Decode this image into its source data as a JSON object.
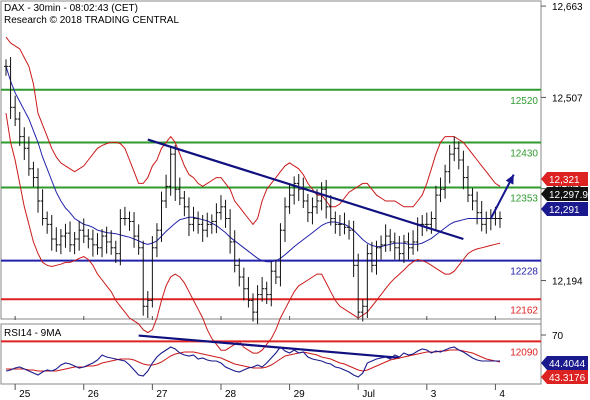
{
  "header": {
    "instrument_line": "DAX - 30min - 08:02:43 (CET)",
    "copyright_line": "Research © 2018 TRADING CENTRAL"
  },
  "colors": {
    "price": "#111111",
    "bollinger": "#cc1a1a",
    "moving_average": "#2222aa",
    "trendline": "#101080",
    "resistance": "#2f9a2f",
    "pivot": "#2222aa",
    "support": "#dd2222",
    "projection_arrow": "#16168e",
    "rsi": "#1a1a8e",
    "rsi_ma": "#cc1a1a",
    "badge_red": "#dd2222",
    "badge_blue": "#1a1a8e",
    "badge_black": "#111111"
  },
  "chart_data": [
    {
      "type": "line",
      "title": "DAX - 30min",
      "panel": "price",
      "ylim": [
        12130,
        12670
      ],
      "y_ticks": [
        12663,
        12507,
        12351,
        12194
      ],
      "x_ticks": [
        {
          "label": "25",
          "x": 2
        },
        {
          "label": "26",
          "x": 17
        },
        {
          "label": "27",
          "x": 32
        },
        {
          "label": "28",
          "x": 47
        },
        {
          "label": "29",
          "x": 62
        },
        {
          "label": "Jul",
          "x": 77
        },
        {
          "label": "3",
          "x": 92
        },
        {
          "label": "4",
          "x": 107
        }
      ],
      "x_range": [
        0,
        115
      ],
      "levels": [
        {
          "label": "12520",
          "value": 12520,
          "kind": "resistance"
        },
        {
          "label": "12430",
          "value": 12430,
          "kind": "resistance"
        },
        {
          "label": "12353",
          "value": 12353,
          "kind": "resistance"
        },
        {
          "label": "12228",
          "value": 12228,
          "kind": "pivot"
        },
        {
          "label": "12162",
          "value": 12162,
          "kind": "support"
        },
        {
          "label": "12090",
          "value": 12090,
          "kind": "support"
        }
      ],
      "trendlines": [
        {
          "name": "upper trendline",
          "from": [
            31,
            12435
          ],
          "to": [
            100,
            12265
          ]
        },
        {
          "name": "lower trendline",
          "from": [
            29,
            12100
          ],
          "to": [
            86,
            12062
          ]
        }
      ],
      "projection_arrow": {
        "from": [
          106,
          12300
        ],
        "to": [
          111,
          12375
        ]
      },
      "price_badges": [
        {
          "label": "12,321",
          "value": 12321,
          "color": "red"
        },
        {
          "label": "12,297.9",
          "value": 12297.9,
          "color": "black"
        },
        {
          "label": "12,291",
          "value": 12291,
          "color": "blue"
        }
      ],
      "close": [
        12560,
        12490,
        12470,
        12440,
        12420,
        12385,
        12370,
        12330,
        12300,
        12290,
        12265,
        12255,
        12270,
        12275,
        12255,
        12265,
        12280,
        12270,
        12265,
        12255,
        12250,
        12270,
        12260,
        12250,
        12240,
        12300,
        12300,
        12295,
        12270,
        12250,
        12150,
        12160,
        12250,
        12280,
        12330,
        12355,
        12410,
        12350,
        12335,
        12320,
        12290,
        12300,
        12290,
        12280,
        12290,
        12295,
        12310,
        12320,
        12300,
        12260,
        12220,
        12200,
        12180,
        12160,
        12140,
        12170,
        12180,
        12170,
        12210,
        12200,
        12280,
        12320,
        12340,
        12360,
        12350,
        12330,
        12310,
        12320,
        12330,
        12350,
        12320,
        12300,
        12290,
        12290,
        12285,
        12280,
        12220,
        12140,
        12150,
        12240,
        12220,
        12250,
        12255,
        12270,
        12260,
        12250,
        12240,
        12260,
        12250,
        12260,
        12290,
        12290,
        12290,
        12300,
        12340,
        12350,
        12380,
        12410,
        12420,
        12400,
        12370,
        12340,
        12330,
        12310,
        12290,
        12300,
        12300,
        12300,
        12300
      ],
      "bb_upper": [
        12610,
        12600,
        12595,
        12590,
        12575,
        12560,
        12530,
        12480,
        12460,
        12440,
        12420,
        12405,
        12395,
        12390,
        12385,
        12380,
        12385,
        12390,
        12400,
        12410,
        12420,
        12425,
        12428,
        12430,
        12430,
        12428,
        12420,
        12400,
        12380,
        12360,
        12360,
        12370,
        12390,
        12400,
        12420,
        12430,
        12440,
        12430,
        12410,
        12390,
        12375,
        12370,
        12360,
        12355,
        12360,
        12365,
        12370,
        12370,
        12360,
        12350,
        12330,
        12320,
        12310,
        12300,
        12290,
        12300,
        12330,
        12350,
        12360,
        12370,
        12380,
        12390,
        12395,
        12390,
        12385,
        12375,
        12360,
        12350,
        12340,
        12340,
        12330,
        12320,
        12320,
        12325,
        12335,
        12345,
        12350,
        12355,
        12360,
        12360,
        12350,
        12340,
        12335,
        12330,
        12330,
        12330,
        12325,
        12320,
        12320,
        12320,
        12330,
        12340,
        12360,
        12385,
        12410,
        12430,
        12440,
        12440,
        12440,
        12435,
        12430,
        12420,
        12410,
        12400,
        12390,
        12380,
        12370,
        12360,
        12355
      ],
      "bb_lower": [
        12480,
        12430,
        12400,
        12360,
        12320,
        12290,
        12260,
        12240,
        12225,
        12220,
        12218,
        12220,
        12222,
        12225,
        12225,
        12228,
        12232,
        12235,
        12230,
        12220,
        12205,
        12195,
        12185,
        12175,
        12160,
        12150,
        12140,
        12130,
        12125,
        12120,
        12110,
        12105,
        12110,
        12130,
        12160,
        12185,
        12200,
        12205,
        12200,
        12190,
        12175,
        12160,
        12145,
        12130,
        12110,
        12095,
        12085,
        12075,
        12075,
        12080,
        12085,
        12090,
        12080,
        12075,
        12070,
        12070,
        12075,
        12085,
        12095,
        12110,
        12130,
        12145,
        12160,
        12175,
        12185,
        12190,
        12195,
        12200,
        12205,
        12205,
        12190,
        12175,
        12160,
        12150,
        12145,
        12140,
        12135,
        12130,
        12135,
        12140,
        12150,
        12160,
        12170,
        12180,
        12190,
        12198,
        12205,
        12212,
        12220,
        12226,
        12230,
        12228,
        12225,
        12220,
        12215,
        12210,
        12205,
        12205,
        12210,
        12220,
        12230,
        12240,
        12245,
        12248,
        12250,
        12252,
        12254,
        12256,
        12258
      ],
      "ma": [
        12560,
        12535,
        12515,
        12500,
        12485,
        12470,
        12450,
        12430,
        12405,
        12385,
        12365,
        12345,
        12330,
        12318,
        12310,
        12300,
        12295,
        12290,
        12288,
        12285,
        12280,
        12278,
        12276,
        12275,
        12274,
        12272,
        12270,
        12268,
        12265,
        12262,
        12258,
        12256,
        12258,
        12262,
        12270,
        12278,
        12285,
        12292,
        12298,
        12300,
        12302,
        12302,
        12300,
        12298,
        12296,
        12292,
        12288,
        12282,
        12276,
        12268,
        12262,
        12256,
        12250,
        12244,
        12238,
        12232,
        12228,
        12226,
        12226,
        12228,
        12232,
        12238,
        12245,
        12252,
        12258,
        12264,
        12270,
        12276,
        12282,
        12288,
        12292,
        12294,
        12294,
        12292,
        12290,
        12286,
        12280,
        12272,
        12264,
        12258,
        12254,
        12252,
        12252,
        12254,
        12256,
        12258,
        12258,
        12258,
        12256,
        12256,
        12256,
        12258,
        12262,
        12266,
        12272,
        12278,
        12284,
        12290,
        12294,
        12296,
        12298,
        12300,
        12300,
        12300,
        12300,
        12300,
        12300,
        12300,
        12300
      ]
    },
    {
      "type": "line",
      "title": "RSI14 - 9MA",
      "panel": "rsi",
      "ylim": [
        22,
        80
      ],
      "y_ticks": [
        70
      ],
      "rsi_badges": [
        {
          "label": "44.4044",
          "value": 44.4044,
          "color": "blue"
        },
        {
          "label": "43.3176",
          "value": 43.3176,
          "color": "red"
        }
      ],
      "series": [
        {
          "name": "RSI14",
          "values": [
            34,
            35,
            37,
            38,
            36,
            34,
            32,
            30,
            33,
            35,
            34,
            36,
            40,
            42,
            41,
            39,
            37,
            38,
            40,
            42,
            45,
            50,
            48,
            47,
            46,
            45,
            44,
            40,
            35,
            30,
            29,
            34,
            42,
            48,
            52,
            55,
            58,
            56,
            52,
            50,
            49,
            50,
            46,
            47,
            45,
            44,
            44,
            42,
            38,
            36,
            34,
            33,
            35,
            37,
            38,
            40,
            38,
            42,
            47,
            52,
            58,
            54,
            52,
            55,
            52,
            53,
            48,
            46,
            45,
            44,
            42,
            41,
            38,
            37,
            35,
            33,
            30,
            28,
            32,
            42,
            44,
            46,
            47,
            48,
            46,
            50,
            48,
            52,
            50,
            51,
            54,
            56,
            55,
            52,
            54,
            53,
            55,
            57,
            58,
            55,
            53,
            50,
            47,
            45,
            44,
            44,
            44,
            44,
            44
          ]
        },
        {
          "name": "9MA",
          "values": [
            36,
            36,
            36,
            36,
            36,
            35,
            35,
            34,
            34,
            34,
            34,
            34,
            35,
            36,
            37,
            38,
            38,
            38,
            39,
            39,
            40,
            42,
            43,
            44,
            45,
            46,
            46,
            46,
            45,
            43,
            41,
            40,
            40,
            41,
            43,
            46,
            49,
            51,
            52,
            53,
            53,
            53,
            52,
            51,
            50,
            49,
            48,
            47,
            45,
            43,
            41,
            40,
            39,
            38,
            37,
            37,
            37,
            38,
            40,
            43,
            46,
            49,
            50,
            51,
            52,
            53,
            52,
            51,
            50,
            48,
            47,
            46,
            44,
            42,
            41,
            39,
            37,
            35,
            34,
            35,
            37,
            39,
            41,
            43,
            45,
            46,
            47,
            48,
            49,
            50,
            51,
            52,
            53,
            53,
            53,
            54,
            54,
            55,
            55,
            55,
            54,
            53,
            52,
            50,
            48,
            46,
            45,
            44,
            43
          ]
        }
      ]
    }
  ]
}
